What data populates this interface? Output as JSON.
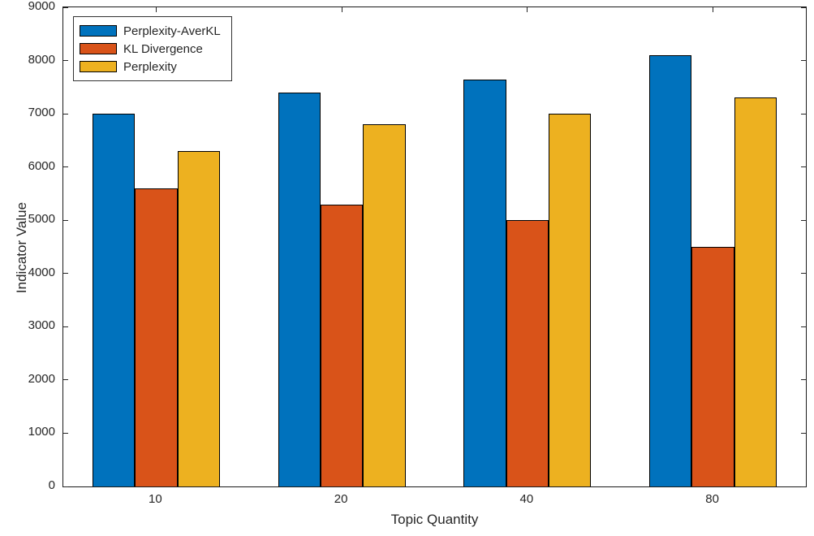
{
  "figure": {
    "background": "#ffffff",
    "axis_color": "#262626",
    "bar_edge_color": "#000000"
  },
  "chart_data": {
    "type": "bar",
    "title": "",
    "xlabel": "Topic Quantity",
    "ylabel": "Indicator Value",
    "categories": [
      "10",
      "20",
      "40",
      "80"
    ],
    "series": [
      {
        "name": "Perplexity-AverKL",
        "color": "#0072BD",
        "values": [
          7000,
          7400,
          7650,
          8100
        ]
      },
      {
        "name": "KL Divergence",
        "color": "#D95319",
        "values": [
          5600,
          5300,
          5000,
          4500
        ]
      },
      {
        "name": "Perplexity",
        "color": "#EDB120",
        "values": [
          6300,
          6800,
          7000,
          7300
        ]
      }
    ],
    "ylim": [
      0,
      9000
    ],
    "yticks": [
      0,
      1000,
      2000,
      3000,
      4000,
      5000,
      6000,
      7000,
      8000,
      9000
    ],
    "grid": false,
    "legend_position": "top-left"
  }
}
